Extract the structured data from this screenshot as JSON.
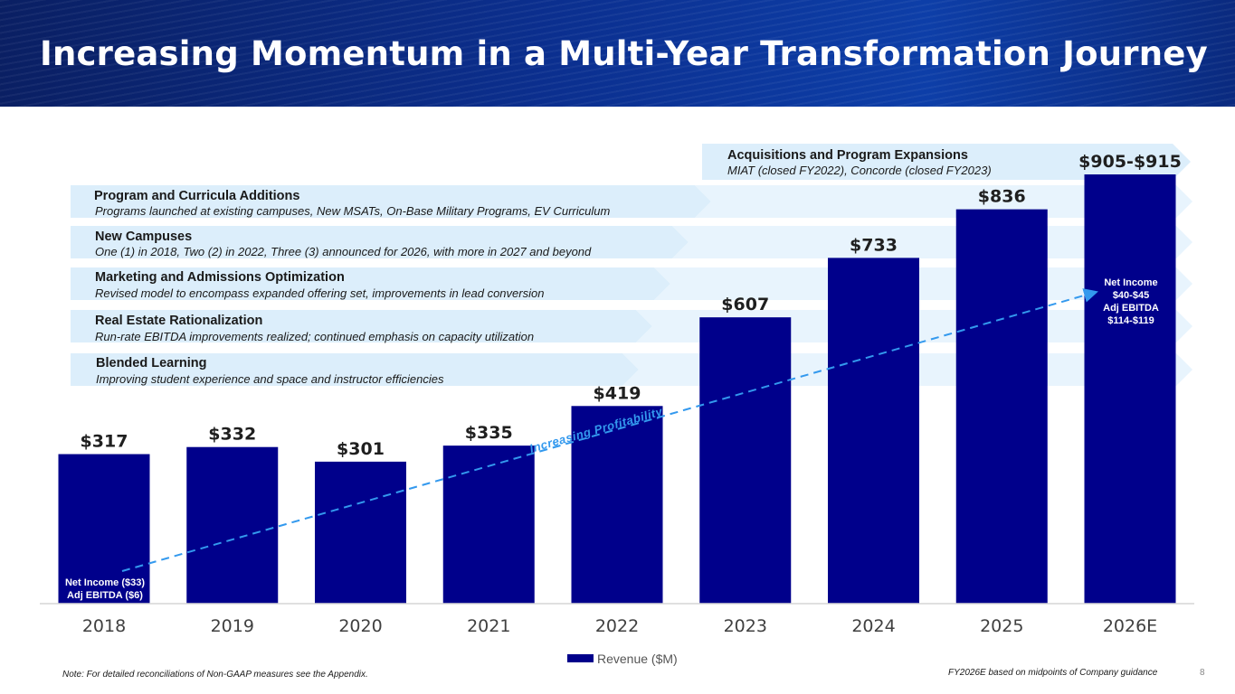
{
  "header": {
    "title": "Increasing Momentum in a Multi-Year Transformation Journey"
  },
  "initiatives": [
    {
      "title": "Program and Curricula Additions",
      "description": "Programs launched at existing campuses, New MSATs, On-Base Military Programs, EV Curriculum"
    },
    {
      "title": "New Campuses",
      "description": "One (1) in 2018, Two (2) in 2022, Three (3) announced for 2026, with more in 2027 and beyond"
    },
    {
      "title": "Marketing and Admissions Optimization",
      "description": "Revised model to encompass expanded offering set, improvements in lead conversion"
    },
    {
      "title": "Real Estate Rationalization",
      "description": "Run-rate EBITDA improvements realized; continued emphasis on capacity utilization"
    },
    {
      "title": "Blended Learning",
      "description": "Improving student experience and space and instructor efficiencies"
    }
  ],
  "acquisitions": {
    "title": "Acquisitions and Program Expansions",
    "description": "MIAT (closed FY2022), Concorde (closed FY2023)"
  },
  "chart_data": {
    "type": "bar",
    "categories": [
      "2018",
      "2019",
      "2020",
      "2021",
      "2022",
      "2023",
      "2024",
      "2025",
      "2026E"
    ],
    "series": [
      {
        "name": "Revenue ($M)",
        "values": [
          317,
          332,
          301,
          335,
          419,
          607,
          733,
          836,
          910
        ]
      }
    ],
    "data_labels": [
      "$317",
      "$332",
      "$301",
      "$335",
      "$419",
      "$607",
      "$733",
      "$836",
      "$905-$915"
    ],
    "ylim": [
      0,
      1000
    ],
    "legend": "bottom-center",
    "trend_label": "Increasing Profitability",
    "annotations": {
      "start": [
        "Net Income ($33)",
        "Adj EBITDA ($6)"
      ],
      "end": [
        "Net Income",
        "$40-$45",
        "Adj EBITDA",
        "$114-$119"
      ]
    }
  },
  "colors": {
    "bar": "#00008b",
    "band": "#dceefb",
    "band_strong": "#c7e3f8",
    "trend": "#3399ee",
    "header": "#0b2f8f"
  },
  "footer": {
    "note": "Note: For detailed reconciliations of Non-GAAP measures see the Appendix.",
    "guidance": "FY2026E based on midpoints of Company guidance",
    "page": "8"
  }
}
